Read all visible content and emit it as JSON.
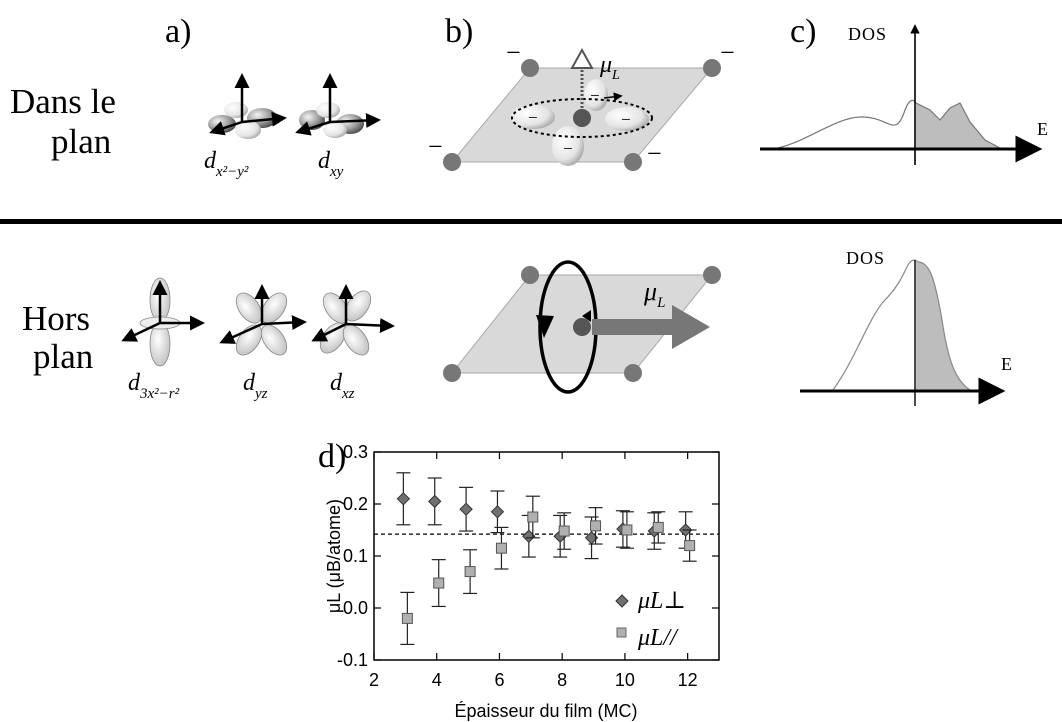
{
  "panel_labels": {
    "a": "a)",
    "b": "b)",
    "c": "c)",
    "d": "d)"
  },
  "rows": {
    "in_plane": {
      "line1": "Dans le",
      "line2": "plan"
    },
    "out_plane": {
      "line1": "Hors",
      "line2": "plan"
    }
  },
  "orbitals": {
    "in_plane": [
      {
        "base": "d",
        "sub": "x²−y²"
      },
      {
        "base": "d",
        "sub": "xy"
      }
    ],
    "out_plane": [
      {
        "base": "d",
        "sub": "3x²−r²"
      },
      {
        "base": "d",
        "sub": "yz"
      },
      {
        "base": "d",
        "sub": "xz"
      }
    ]
  },
  "charge_sign": "−",
  "moment_label": {
    "base": "μ",
    "sub": "L"
  },
  "dos": {
    "ylabel": "DOS",
    "xlabel": "E"
  },
  "chart_data": {
    "type": "scatter",
    "xlabel": "Épaisseur du film (MC)",
    "ylabel": "μL (μB/atome)",
    "xlim": [
      2,
      13
    ],
    "ylim": [
      -0.1,
      0.3
    ],
    "xticks": [
      2,
      4,
      6,
      8,
      10,
      12
    ],
    "yticks": [
      -0.1,
      0.0,
      0.1,
      0.2,
      0.3
    ],
    "ytick_labels": [
      "-0.1",
      "0.0",
      "0.1",
      "0.2",
      "0.3"
    ],
    "reference_line": 0.142,
    "legend_position": "bottom-right",
    "series": [
      {
        "name": "μL⊥",
        "marker": "diamond",
        "color": "#707070",
        "x": [
          3,
          4,
          5,
          6,
          7,
          8,
          9,
          10,
          11,
          12
        ],
        "y": [
          0.21,
          0.205,
          0.19,
          0.185,
          0.138,
          0.138,
          0.135,
          0.152,
          0.148,
          0.15
        ],
        "err": [
          0.05,
          0.045,
          0.042,
          0.04,
          0.04,
          0.04,
          0.04,
          0.035,
          0.035,
          0.035
        ]
      },
      {
        "name": "μL//",
        "marker": "square",
        "color": "#b0b0b0",
        "x": [
          3,
          4,
          5,
          6,
          7,
          8,
          9,
          10,
          11,
          12
        ],
        "y": [
          -0.02,
          0.048,
          0.07,
          0.115,
          0.175,
          0.148,
          0.158,
          0.15,
          0.155,
          0.12
        ],
        "err": [
          0.05,
          0.045,
          0.042,
          0.04,
          0.04,
          0.035,
          0.035,
          0.035,
          0.03,
          0.03
        ]
      }
    ]
  }
}
